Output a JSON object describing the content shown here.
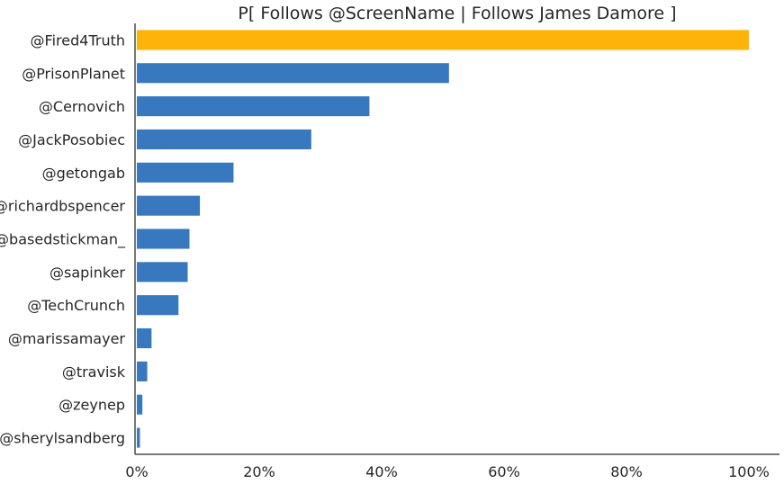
{
  "chart_data": {
    "type": "bar",
    "orientation": "horizontal",
    "title": "P[ Follows @ScreenName | Follows James Damore ]",
    "xlabel": "",
    "ylabel": "",
    "categories": [
      "@Fired4Truth",
      "@PrisonPlanet",
      "@Cernovich",
      "@JackPosobiec",
      "@getongab",
      "@richardbspencer",
      "@basedstickman_",
      "@sapinker",
      "@TechCrunch",
      "@marissamayer",
      "@travisk",
      "@zeynep",
      "@sherylsandberg"
    ],
    "values": [
      1.0,
      0.51,
      0.38,
      0.285,
      0.158,
      0.103,
      0.086,
      0.083,
      0.068,
      0.024,
      0.017,
      0.009,
      0.005
    ],
    "highlight_index": 0,
    "bar_color": "#3778bf",
    "highlight_color": "#feb308",
    "xlim": [
      -0.003,
      1.05
    ],
    "xticks": [
      0,
      0.2,
      0.4,
      0.6,
      0.8,
      1.0
    ],
    "xtick_labels": [
      "0%",
      "20%",
      "40%",
      "60%",
      "80%",
      "100%"
    ],
    "grid": false
  }
}
